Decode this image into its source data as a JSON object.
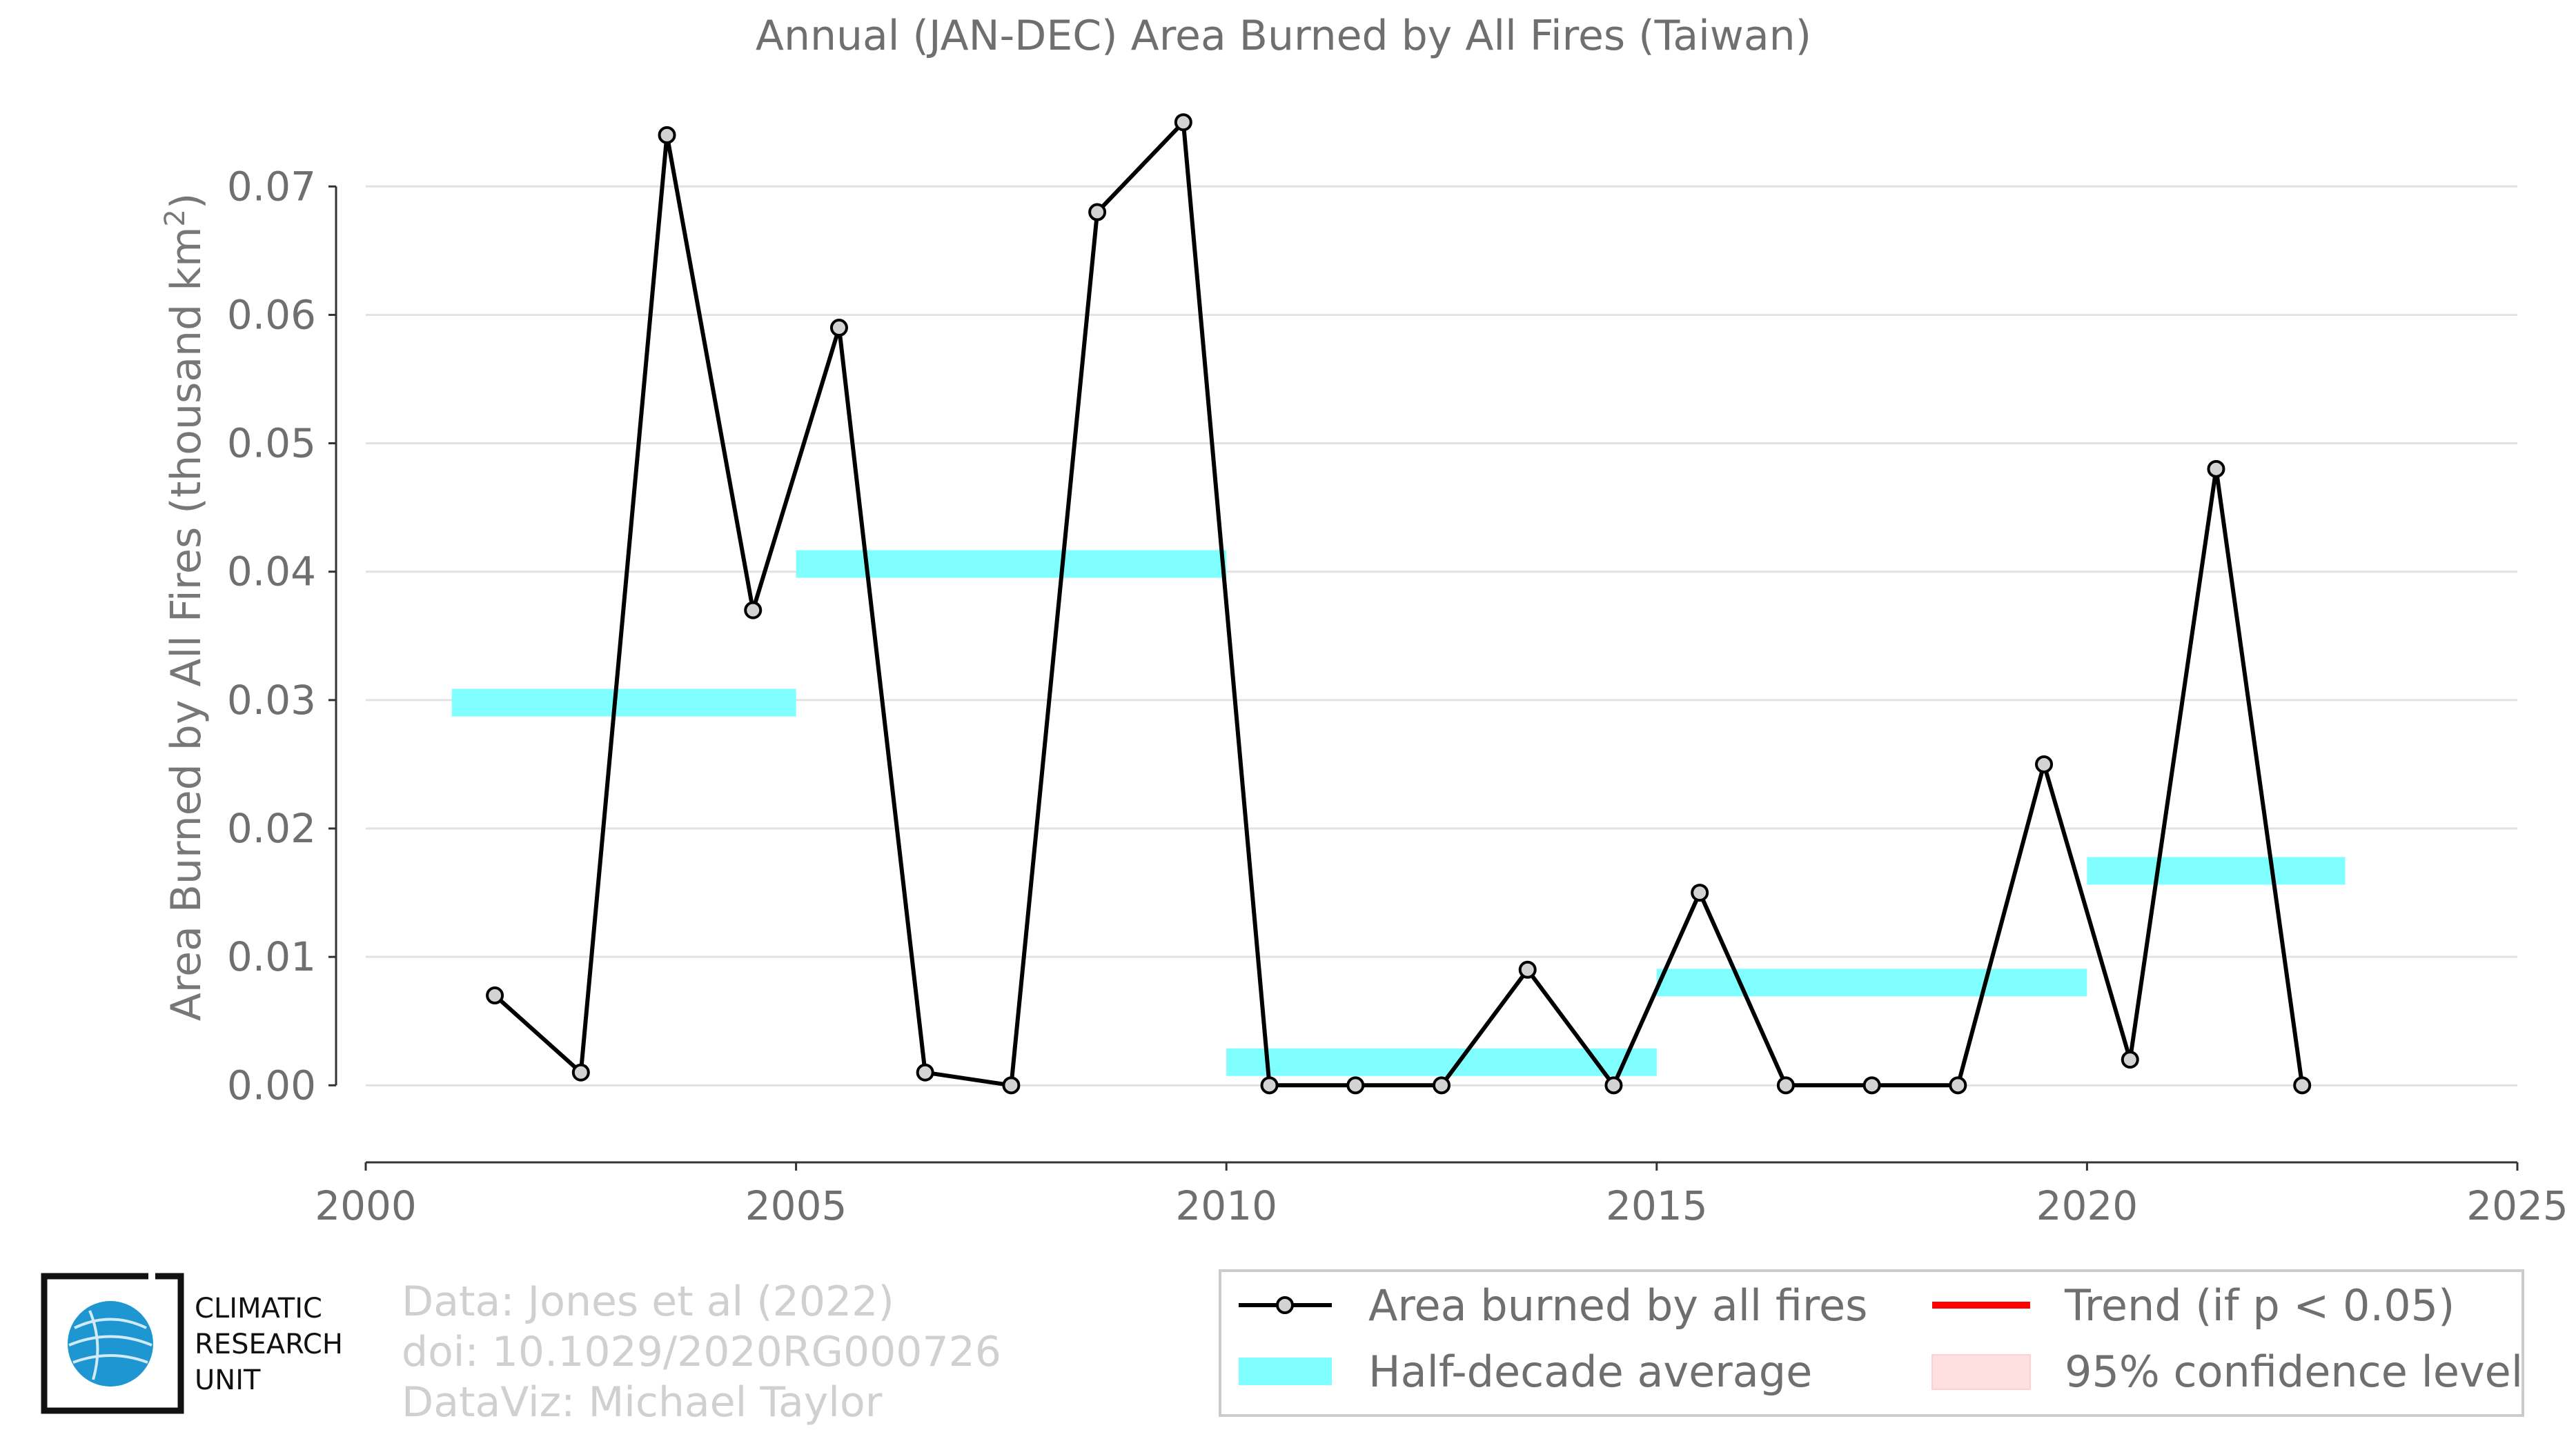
{
  "chart_data": {
    "type": "line",
    "title": "Annual (JAN-DEC) Area Burned by All Fires (Taiwan)",
    "ylabel": "Area Burned by All Fires (thousand km",
    "ylabel_sup": "2",
    "ylabel_close": ")",
    "xlabel": "",
    "xlim": [
      2000,
      2025
    ],
    "ylim": [
      -0.006,
      0.077
    ],
    "xticks": [
      2000,
      2005,
      2010,
      2015,
      2020,
      2025
    ],
    "yticks": [
      0.0,
      0.01,
      0.02,
      0.03,
      0.04,
      0.05,
      0.06,
      0.07
    ],
    "yticklabels": [
      "0.00",
      "0.01",
      "0.02",
      "0.03",
      "0.04",
      "0.05",
      "0.06",
      "0.07"
    ],
    "grid": "horizontal",
    "series": [
      {
        "name": "Area burned by all fires",
        "color": "#000000",
        "marker_fill": "#d3d3d3",
        "x": [
          2001.5,
          2002.5,
          2003.5,
          2004.5,
          2005.5,
          2006.5,
          2007.5,
          2008.5,
          2009.5,
          2010.5,
          2011.5,
          2012.5,
          2013.5,
          2014.5,
          2015.5,
          2016.5,
          2017.5,
          2018.5,
          2019.5,
          2020.5,
          2021.5,
          2022.5
        ],
        "y": [
          0.007,
          0.001,
          0.074,
          0.037,
          0.059,
          0.001,
          0.0,
          0.068,
          0.075,
          0.0,
          0.0,
          0.0,
          0.009,
          0.0,
          0.015,
          0.0,
          0.0,
          0.0,
          0.025,
          0.002,
          0.048,
          0.0
        ]
      }
    ],
    "half_decade_average": {
      "name": "Half-decade average",
      "color": "#7fffff",
      "segments": [
        {
          "x0": 2001,
          "x1": 2005,
          "y": 0.0298
        },
        {
          "x0": 2005,
          "x1": 2010,
          "y": 0.0406
        },
        {
          "x0": 2010,
          "x1": 2015,
          "y": 0.0018
        },
        {
          "x0": 2015,
          "x1": 2020,
          "y": 0.008
        },
        {
          "x0": 2020,
          "x1": 2023,
          "y": 0.0167
        }
      ]
    },
    "legend": {
      "placement": "bottom-right",
      "items": [
        {
          "label": "Area burned by all fires",
          "kind": "line-marker",
          "color": "#000000"
        },
        {
          "label": "Trend (if p < 0.05)",
          "kind": "line",
          "color": "#ff0000"
        },
        {
          "label": "Half-decade average",
          "kind": "band",
          "color": "#7fffff"
        },
        {
          "label": "95% confidence level",
          "kind": "patch",
          "color": "#ffe0e0"
        }
      ]
    }
  },
  "credits": {
    "line1": "Data: Jones et al (2022)",
    "line2": "doi: 10.1029/2020RG000726",
    "line3": "DataViz: Michael Taylor"
  },
  "logo": {
    "line1": "CLIMATIC",
    "line2": "RESEARCH",
    "line3": "UNIT",
    "globe_color": "#1e96d2"
  }
}
